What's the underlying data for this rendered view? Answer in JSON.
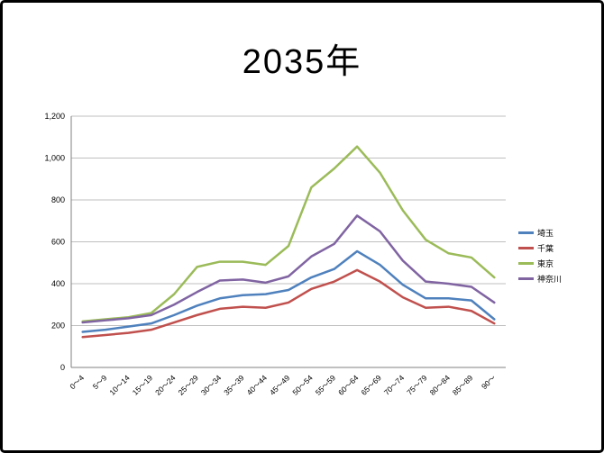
{
  "title": "2035年",
  "chart_data": {
    "type": "line",
    "title": "2035年",
    "categories": [
      "0〜4",
      "5〜9",
      "10〜14",
      "15〜19",
      "20〜24",
      "25〜29",
      "30〜34",
      "35〜39",
      "40〜44",
      "45〜49",
      "50〜54",
      "55〜59",
      "60〜64",
      "65〜69",
      "70〜74",
      "75〜79",
      "80〜84",
      "85〜89",
      "90〜"
    ],
    "series": [
      {
        "name": "埼玉",
        "color": "#4F81BD",
        "values": [
          170,
          180,
          195,
          210,
          250,
          295,
          330,
          345,
          350,
          370,
          430,
          470,
          555,
          490,
          395,
          330,
          330,
          320,
          230
        ]
      },
      {
        "name": "千葉",
        "color": "#C0504D",
        "values": [
          145,
          155,
          165,
          180,
          215,
          250,
          280,
          290,
          285,
          310,
          375,
          410,
          465,
          410,
          335,
          285,
          290,
          270,
          210
        ]
      },
      {
        "name": "東京",
        "color": "#9BBB59",
        "values": [
          220,
          230,
          240,
          260,
          350,
          480,
          505,
          505,
          490,
          580,
          860,
          950,
          1055,
          930,
          750,
          610,
          545,
          525,
          430
        ]
      },
      {
        "name": "神奈川",
        "color": "#8064A2",
        "values": [
          215,
          225,
          235,
          250,
          300,
          360,
          415,
          420,
          405,
          435,
          530,
          590,
          725,
          650,
          510,
          410,
          400,
          385,
          310
        ]
      }
    ],
    "ylim": [
      0,
      1200
    ],
    "ytick_step": 200,
    "ytick_labels": [
      "0",
      "200",
      "400",
      "600",
      "800",
      "1,000",
      "1,200"
    ],
    "grid": true,
    "legend_position": "right",
    "gridline_color": "#BFBFBF",
    "axis_color": "#808080"
  }
}
